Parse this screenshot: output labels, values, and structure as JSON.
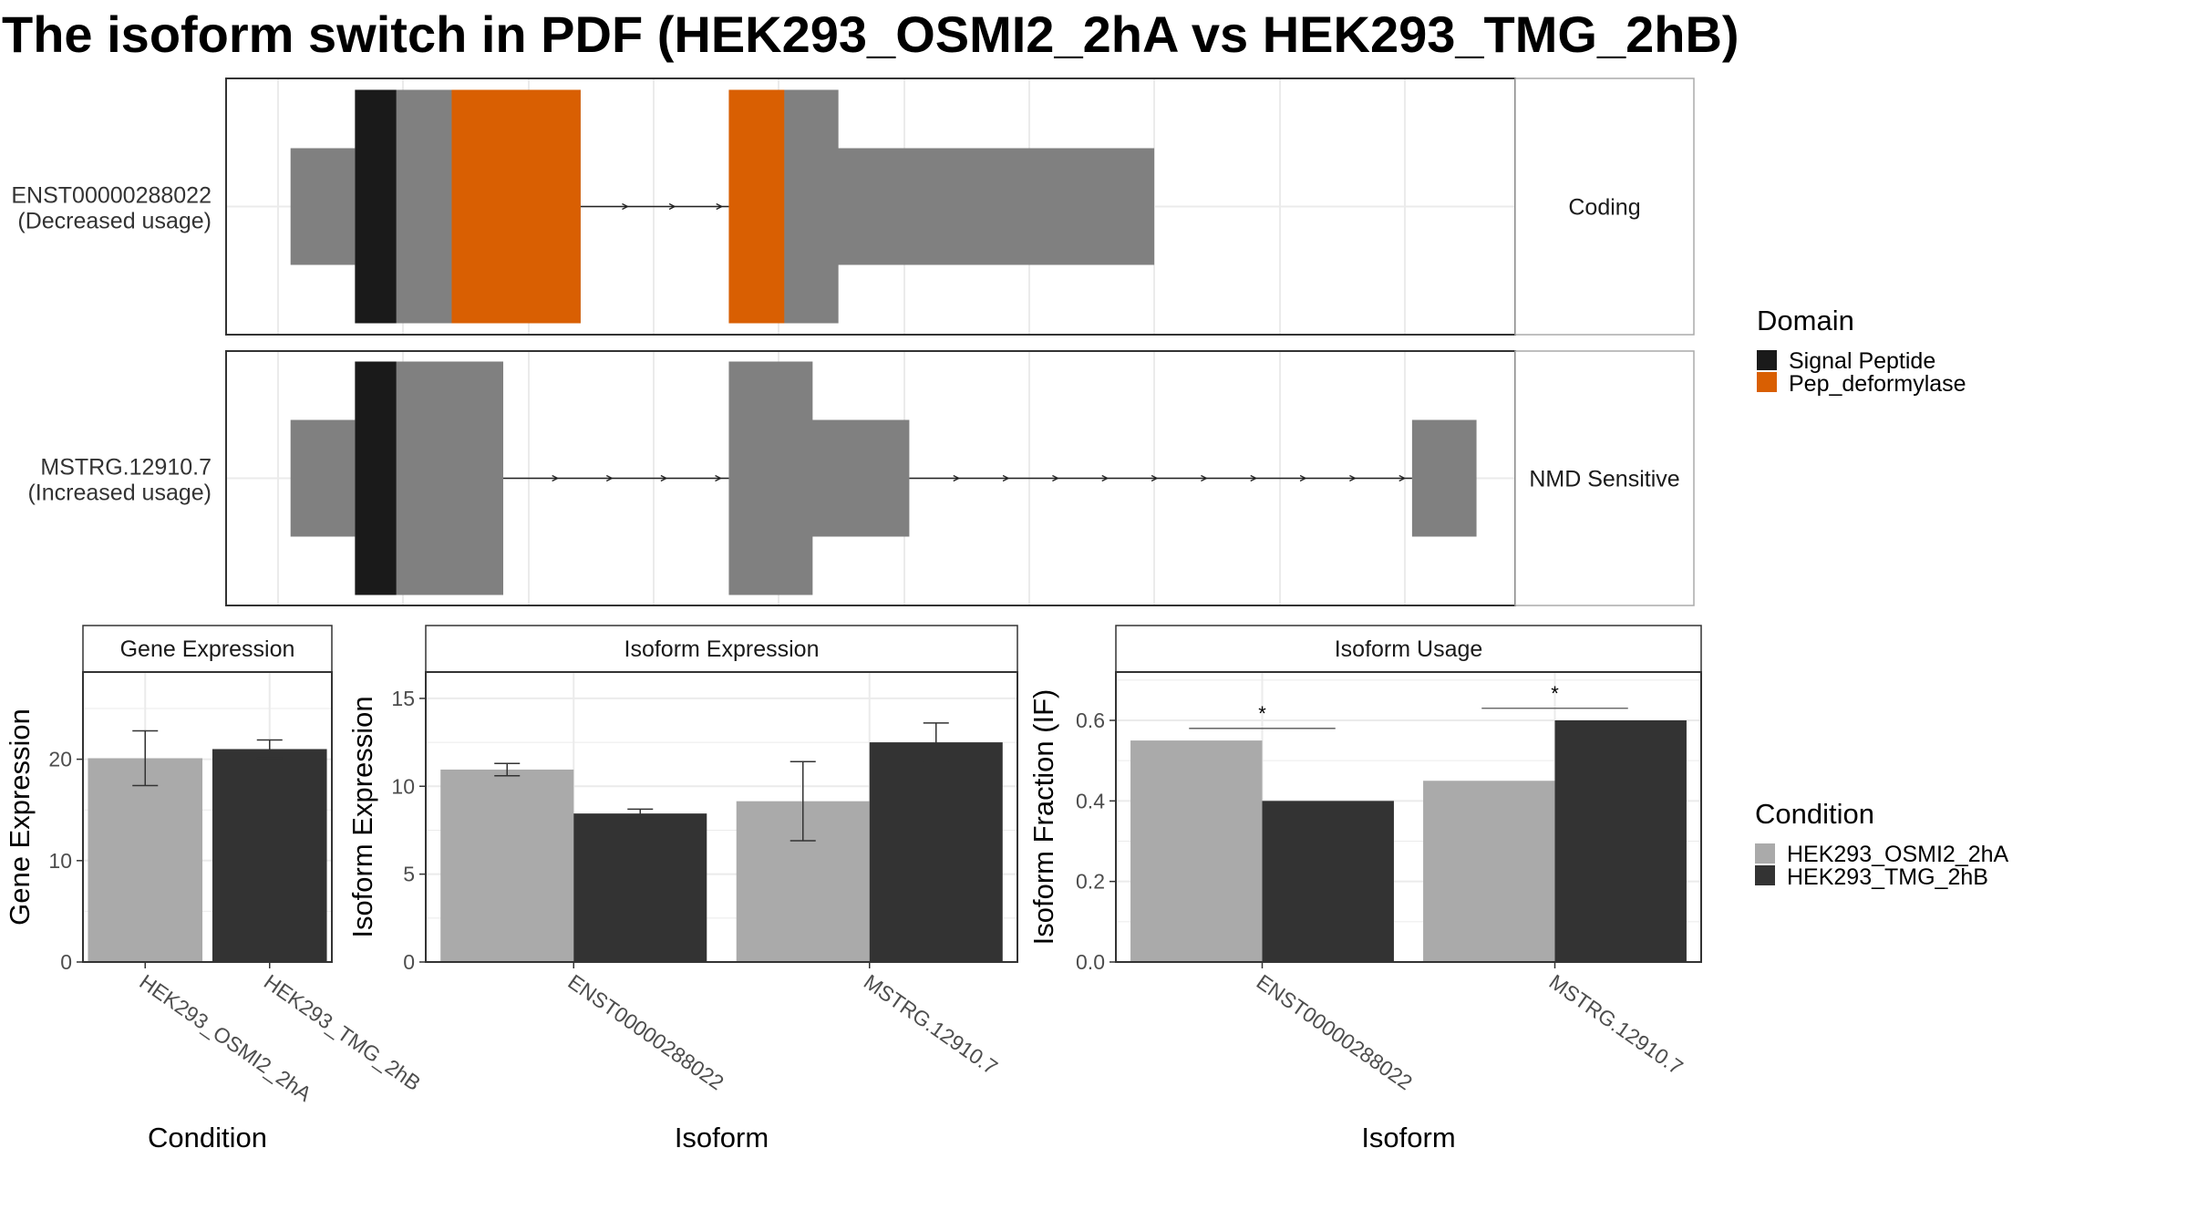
{
  "title": "The isoform switch in PDF (HEK293_OSMI2_2hA vs HEK293_TMG_2hB)",
  "colors": {
    "exon": "#808080",
    "signal_peptide": "#1a1a1a",
    "pep_deformylase": "#d95f02",
    "condition_a": "#aaaaaa",
    "condition_b": "#333333",
    "grid": "#ebebeb",
    "panel_border": "#333333"
  },
  "legend_domain": {
    "title": "Domain",
    "items": [
      {
        "label": "Signal Peptide",
        "color": "#1a1a1a"
      },
      {
        "label": "Pep_deformylase",
        "color": "#d95f02"
      }
    ]
  },
  "legend_condition": {
    "title": "Condition",
    "items": [
      {
        "label": "HEK293_OSMI2_2hA",
        "color": "#aaaaaa"
      },
      {
        "label": "HEK293_TMG_2hB",
        "color": "#333333"
      }
    ]
  },
  "chart_data": [
    {
      "type": "gene_structure",
      "x_range": [
        0,
        100
      ],
      "transcripts": [
        {
          "name": "ENST00000288022",
          "sublabel": "(Decreased usage)",
          "strip": "Coding",
          "noncoding": [
            [
              5,
              10
            ],
            [
              42,
              72
            ]
          ],
          "coding": [
            [
              10,
              27.5
            ],
            [
              39,
              47.5
            ]
          ],
          "domains": [
            {
              "name": "Signal Peptide",
              "start": 10,
              "end": 13.2
            },
            {
              "name": "Pep_deformylase",
              "start": 17.5,
              "end": 27.5
            },
            {
              "name": "Pep_deformylase",
              "start": 39,
              "end": 43.3
            }
          ],
          "introns": [
            [
              27.5,
              39
            ]
          ]
        },
        {
          "name": "MSTRG.12910.7",
          "sublabel": "(Increased usage)",
          "strip": "NMD Sensitive",
          "noncoding": [
            [
              5,
              10
            ],
            [
              43.3,
              53
            ],
            [
              92,
              97
            ]
          ],
          "coding": [
            [
              10,
              21.5
            ],
            [
              39,
              45.5
            ]
          ],
          "domains": [
            {
              "name": "Signal Peptide",
              "start": 10,
              "end": 13.2
            }
          ],
          "introns": [
            [
              21.5,
              39
            ],
            [
              53,
              92
            ]
          ]
        }
      ]
    },
    {
      "type": "bar",
      "strip": "Gene Expression",
      "xlabel": "Condition",
      "ylabel": "Gene Expression",
      "ylim": [
        0,
        28.6
      ],
      "yticks": [
        0,
        10,
        20
      ],
      "categories": [
        "HEK293_OSMI2_2hA",
        "HEK293_TMG_2hB"
      ],
      "values": [
        20.1,
        21.0
      ],
      "error_low": [
        17.4,
        20.1
      ],
      "error_high": [
        22.8,
        21.9
      ]
    },
    {
      "type": "bar",
      "strip": "Isoform Expression",
      "xlabel": "Isoform",
      "ylabel": "Isoform Expression",
      "ylim": [
        0,
        16.5
      ],
      "yticks": [
        0,
        5,
        10,
        15
      ],
      "categories": [
        "ENST00000288022",
        "MSTRG.12910.7"
      ],
      "series": [
        {
          "name": "HEK293_OSMI2_2hA",
          "values": [
            10.95,
            9.15
          ],
          "error_low": [
            10.6,
            6.9
          ],
          "error_high": [
            11.3,
            11.4
          ]
        },
        {
          "name": "HEK293_TMG_2hB",
          "values": [
            8.45,
            12.5
          ],
          "error_low": [
            8.2,
            11.4
          ],
          "error_high": [
            8.7,
            13.6
          ]
        }
      ]
    },
    {
      "type": "bar",
      "strip": "Isoform Usage",
      "xlabel": "Isoform",
      "ylabel": "Isoform Fraction (IF)",
      "ylim": [
        0,
        0.72
      ],
      "yticks": [
        "0.0",
        "0.2",
        "0.4",
        "0.6"
      ],
      "categories": [
        "ENST00000288022",
        "MSTRG.12910.7"
      ],
      "series": [
        {
          "name": "HEK293_OSMI2_2hA",
          "values": [
            0.55,
            0.45
          ]
        },
        {
          "name": "HEK293_TMG_2hB",
          "values": [
            0.4,
            0.6
          ]
        }
      ],
      "significance": [
        {
          "label": "*",
          "y": 0.58
        },
        {
          "label": "*",
          "y": 0.63
        }
      ]
    }
  ]
}
